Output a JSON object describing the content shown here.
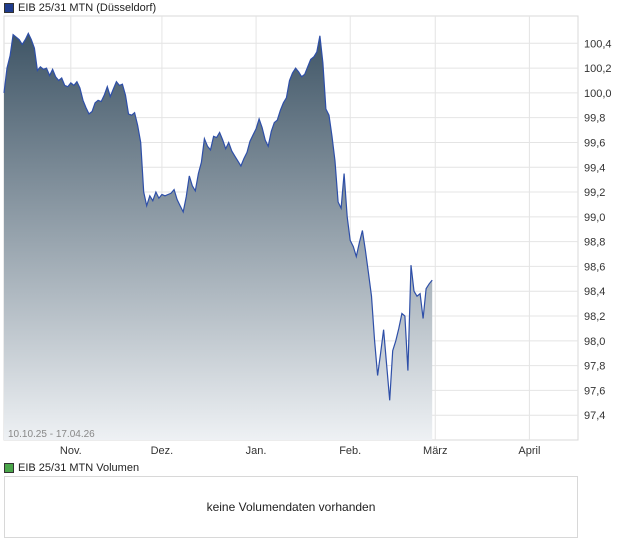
{
  "main_legend": {
    "label": "EIB 25/31 MTN (Düsseldorf)",
    "color": "#1f3c8c"
  },
  "volume_legend": {
    "label": "EIB 25/31 MTN Volumen",
    "color": "#4aa64a"
  },
  "volume_message": "keine Volumendaten vorhanden",
  "date_range": "10.10.25 - 17.04.26",
  "colors": {
    "line": "#2e4fa8",
    "fill_top": "#3f5566",
    "fill_bottom": "#eef1f4",
    "grid": "#e4e4e4"
  },
  "chart_data": {
    "type": "area",
    "series_name": "EIB 25/31 MTN (Düsseldorf)",
    "ylim": [
      97.2,
      100.62
    ],
    "yticks": [
      97.4,
      97.6,
      97.8,
      98.0,
      98.2,
      98.4,
      98.6,
      98.8,
      99.0,
      99.2,
      99.4,
      99.6,
      99.8,
      100.0,
      100.2,
      100.4
    ],
    "ytick_labels": [
      "97,4",
      "97,6",
      "97,8",
      "98,0",
      "98,2",
      "98,4",
      "98,6",
      "98,8",
      "99,0",
      "99,2",
      "99,4",
      "99,6",
      "99,8",
      "100,0",
      "100,2",
      "100,4"
    ],
    "x_domain": [
      0,
      189
    ],
    "xticks": [
      {
        "pos": 22,
        "label": "Nov."
      },
      {
        "pos": 52,
        "label": "Dez."
      },
      {
        "pos": 83,
        "label": "Jan."
      },
      {
        "pos": 114,
        "label": "Feb."
      },
      {
        "pos": 142,
        "label": "März"
      },
      {
        "pos": 173,
        "label": "April"
      }
    ],
    "points": [
      [
        0,
        100.0
      ],
      [
        1,
        100.2
      ],
      [
        2,
        100.3
      ],
      [
        3,
        100.47
      ],
      [
        4,
        100.45
      ],
      [
        5,
        100.43
      ],
      [
        6,
        100.39
      ],
      [
        7,
        100.43
      ],
      [
        8,
        100.48
      ],
      [
        9,
        100.43
      ],
      [
        10,
        100.36
      ],
      [
        11,
        100.18
      ],
      [
        12,
        100.21
      ],
      [
        13,
        100.19
      ],
      [
        14,
        100.2
      ],
      [
        15,
        100.14
      ],
      [
        16,
        100.19
      ],
      [
        17,
        100.13
      ],
      [
        18,
        100.1
      ],
      [
        19,
        100.12
      ],
      [
        20,
        100.06
      ],
      [
        21,
        100.05
      ],
      [
        22,
        100.08
      ],
      [
        23,
        100.06
      ],
      [
        24,
        100.09
      ],
      [
        25,
        100.04
      ],
      [
        26,
        99.94
      ],
      [
        27,
        99.88
      ],
      [
        28,
        99.83
      ],
      [
        29,
        99.85
      ],
      [
        30,
        99.92
      ],
      [
        31,
        99.94
      ],
      [
        32,
        99.93
      ],
      [
        33,
        99.98
      ],
      [
        34,
        100.05
      ],
      [
        35,
        99.97
      ],
      [
        36,
        100.03
      ],
      [
        37,
        100.09
      ],
      [
        38,
        100.06
      ],
      [
        39,
        100.07
      ],
      [
        40,
        99.98
      ],
      [
        41,
        99.83
      ],
      [
        42,
        99.82
      ],
      [
        43,
        99.84
      ],
      [
        44,
        99.74
      ],
      [
        45,
        99.6
      ],
      [
        46,
        99.2
      ],
      [
        47,
        99.09
      ],
      [
        48,
        99.17
      ],
      [
        49,
        99.13
      ],
      [
        50,
        99.2
      ],
      [
        51,
        99.15
      ],
      [
        52,
        99.18
      ],
      [
        53,
        99.17
      ],
      [
        54,
        99.18
      ],
      [
        55,
        99.19
      ],
      [
        56,
        99.22
      ],
      [
        57,
        99.14
      ],
      [
        58,
        99.09
      ],
      [
        59,
        99.04
      ],
      [
        60,
        99.16
      ],
      [
        61,
        99.33
      ],
      [
        62,
        99.25
      ],
      [
        63,
        99.21
      ],
      [
        64,
        99.35
      ],
      [
        65,
        99.44
      ],
      [
        66,
        99.63
      ],
      [
        67,
        99.57
      ],
      [
        68,
        99.54
      ],
      [
        69,
        99.65
      ],
      [
        70,
        99.64
      ],
      [
        71,
        99.68
      ],
      [
        72,
        99.62
      ],
      [
        73,
        99.55
      ],
      [
        74,
        99.6
      ],
      [
        75,
        99.53
      ],
      [
        76,
        99.49
      ],
      [
        77,
        99.45
      ],
      [
        78,
        99.41
      ],
      [
        79,
        99.47
      ],
      [
        80,
        99.52
      ],
      [
        81,
        99.61
      ],
      [
        82,
        99.66
      ],
      [
        83,
        99.71
      ],
      [
        84,
        99.79
      ],
      [
        85,
        99.72
      ],
      [
        86,
        99.62
      ],
      [
        87,
        99.57
      ],
      [
        88,
        99.69
      ],
      [
        89,
        99.76
      ],
      [
        90,
        99.78
      ],
      [
        91,
        99.86
      ],
      [
        92,
        99.92
      ],
      [
        93,
        99.96
      ],
      [
        94,
        100.1
      ],
      [
        95,
        100.16
      ],
      [
        96,
        100.2
      ],
      [
        97,
        100.17
      ],
      [
        98,
        100.13
      ],
      [
        99,
        100.15
      ],
      [
        100,
        100.21
      ],
      [
        101,
        100.27
      ],
      [
        102,
        100.29
      ],
      [
        103,
        100.33
      ],
      [
        104,
        100.46
      ],
      [
        105,
        100.24
      ],
      [
        106,
        99.87
      ],
      [
        107,
        99.82
      ],
      [
        108,
        99.65
      ],
      [
        109,
        99.45
      ],
      [
        110,
        99.12
      ],
      [
        111,
        99.07
      ],
      [
        112,
        99.35
      ],
      [
        113,
        99.0
      ],
      [
        114,
        98.81
      ],
      [
        115,
        98.76
      ],
      [
        116,
        98.68
      ],
      [
        117,
        98.79
      ],
      [
        118,
        98.89
      ],
      [
        119,
        98.73
      ],
      [
        120,
        98.55
      ],
      [
        121,
        98.36
      ],
      [
        122,
        98.01
      ],
      [
        123,
        97.72
      ],
      [
        124,
        97.9
      ],
      [
        125,
        98.09
      ],
      [
        126,
        97.8
      ],
      [
        127,
        97.52
      ],
      [
        128,
        97.92
      ],
      [
        129,
        98.0
      ],
      [
        130,
        98.1
      ],
      [
        131,
        98.22
      ],
      [
        132,
        98.2
      ],
      [
        133,
        97.76
      ],
      [
        134,
        98.61
      ],
      [
        135,
        98.4
      ],
      [
        136,
        98.36
      ],
      [
        137,
        98.38
      ],
      [
        138,
        98.18
      ],
      [
        139,
        98.42
      ],
      [
        140,
        98.46
      ],
      [
        141,
        98.49
      ]
    ],
    "x_scale": 1.0
  }
}
